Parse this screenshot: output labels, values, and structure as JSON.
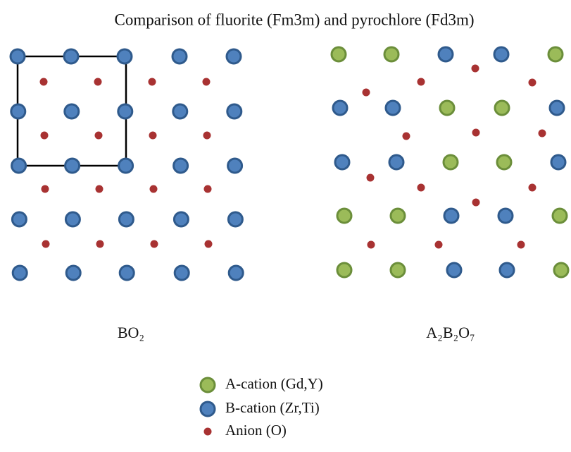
{
  "title": "Comparison of fluorite (Fm3m) and pyrochlore (Fd3m)",
  "left_label": "BO₂",
  "right_label": "A₂B₂O₇",
  "legend": [
    "A-cation (Gd,Y)",
    "B-cation (Zr,Ti)",
    "Anion (O)"
  ]
}
